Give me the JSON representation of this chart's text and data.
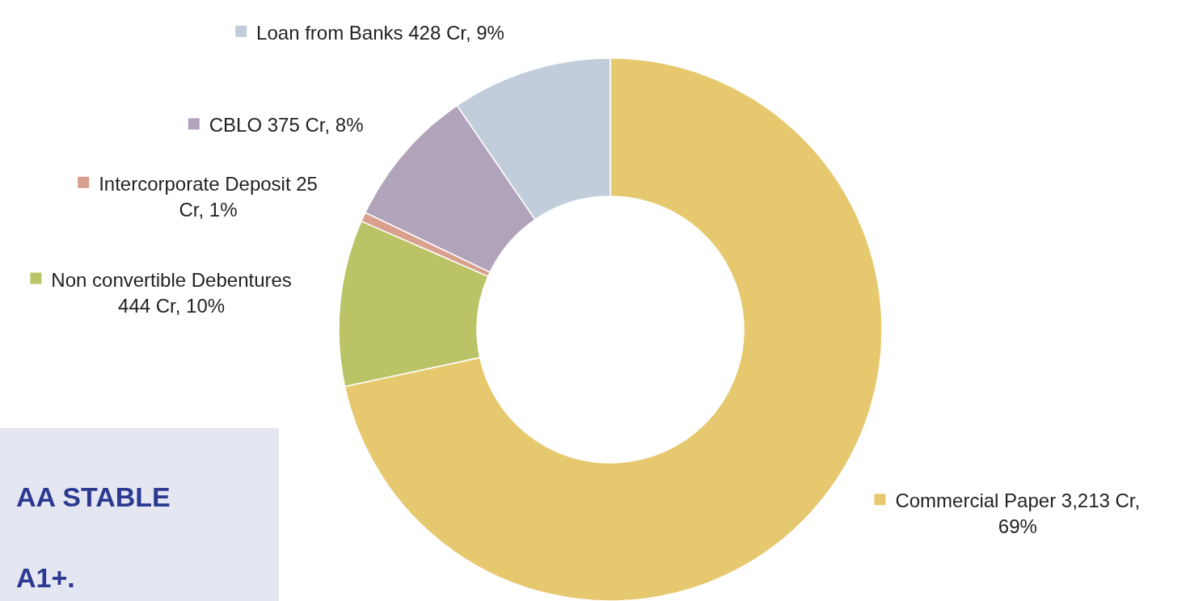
{
  "chart_data": {
    "type": "donut",
    "categories": [
      "Commercial Paper",
      "Non convertible Debentures",
      "Intercorporate Deposit",
      "CBLO",
      "Loan from Banks"
    ],
    "values": [
      3213,
      444,
      25,
      375,
      428
    ],
    "value_labels": [
      "3,213 Cr, 69%",
      "444 Cr, 10%",
      "25 Cr, 1%",
      "375 Cr, 8%",
      "428 Cr, 9%"
    ],
    "colors": [
      "#e6c86e",
      "#bac366",
      "#d9a08e",
      "#b1a3ba",
      "#c2cddc"
    ],
    "legend": "left",
    "annotations": [
      "AA STABLE",
      "A1+."
    ]
  }
}
